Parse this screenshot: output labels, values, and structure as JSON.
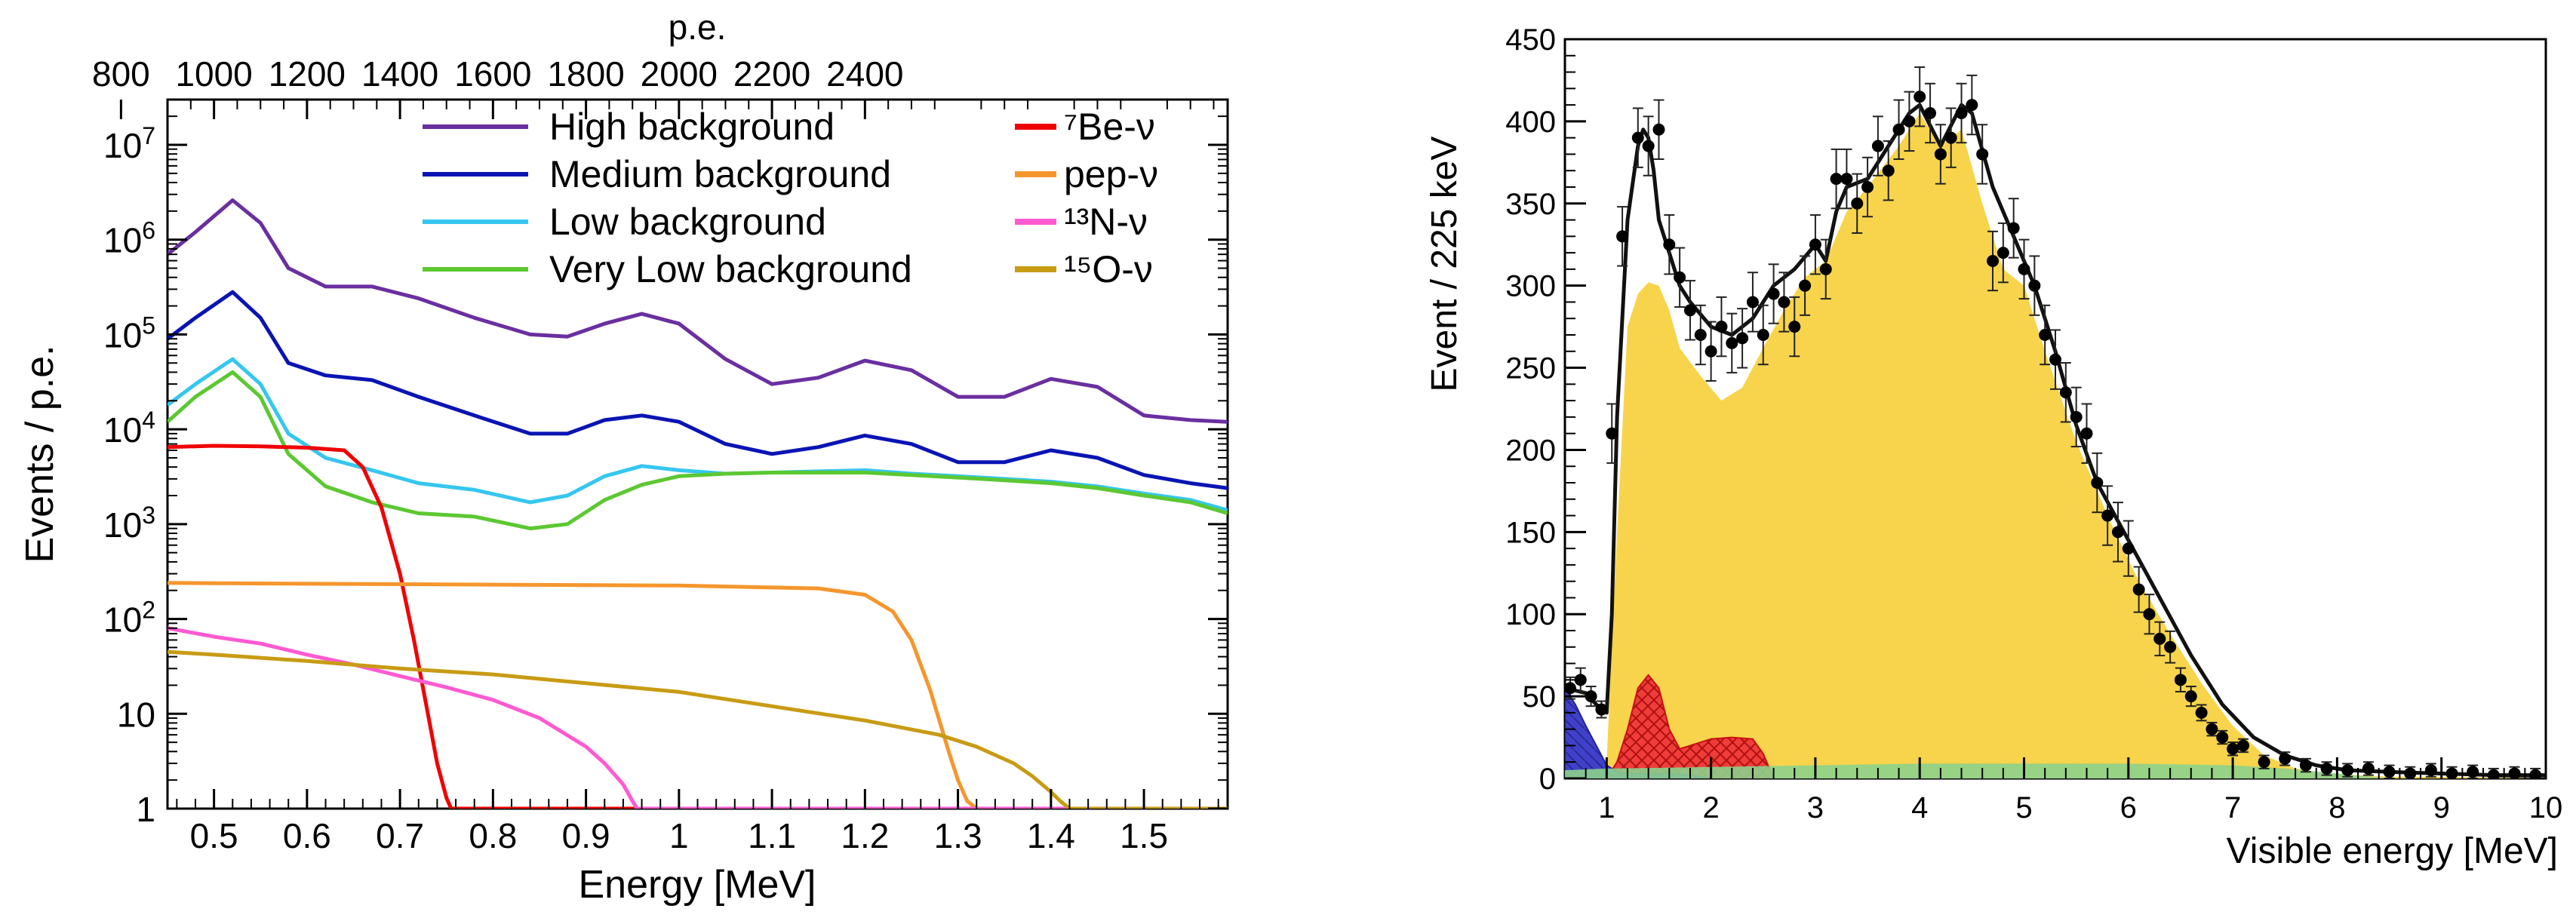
{
  "chart_data": [
    {
      "type": "line",
      "title": "",
      "xlabel": "Energy [MeV]",
      "ylabel": "Events / p.e.",
      "top_axis_label": "p.e.",
      "xlim": [
        0.45,
        1.59
      ],
      "ylim": [
        1,
        30000000
      ],
      "yscale": "log",
      "top_axis_pe_per_mev": 2000,
      "x_ticks": [
        0.5,
        0.6,
        0.7,
        0.8,
        0.9,
        1.0,
        1.1,
        1.2,
        1.3,
        1.4,
        1.5
      ],
      "x_tick_labels": [
        "0.5",
        "0.6",
        "0.7",
        "0.8",
        "0.9",
        "1",
        "1.1",
        "1.2",
        "1.3",
        "1.4",
        "1.5"
      ],
      "top_ticks": [
        800,
        1000,
        1200,
        1400,
        1600,
        1800,
        2000,
        2200,
        2400
      ],
      "top_tick_labels": [
        "800",
        "1000",
        "1200",
        "1400",
        "1600",
        "1800",
        "2000",
        "2200",
        "2400"
      ],
      "y_ticks": [
        {
          "value": 1,
          "base": "1",
          "exp": ""
        },
        {
          "value": 10,
          "base": "10",
          "exp": ""
        },
        {
          "value": 100,
          "base": "10",
          "exp": "2"
        },
        {
          "value": 1000,
          "base": "10",
          "exp": "3"
        },
        {
          "value": 10000,
          "base": "10",
          "exp": "4"
        },
        {
          "value": 100000,
          "base": "10",
          "exp": "5"
        },
        {
          "value": 1000000,
          "base": "10",
          "exp": "6"
        },
        {
          "value": 10000000,
          "base": "10",
          "exp": "7"
        }
      ],
      "series": [
        {
          "name": "High background",
          "color": "#6a2fa0",
          "x": [
            0.45,
            0.48,
            0.52,
            0.55,
            0.58,
            0.62,
            0.67,
            0.72,
            0.78,
            0.84,
            0.88,
            0.92,
            0.96,
            1.0,
            1.05,
            1.1,
            1.15,
            1.2,
            1.25,
            1.3,
            1.35,
            1.4,
            1.45,
            1.5,
            1.55,
            1.59
          ],
          "y": [
            700000,
            1200000,
            2600000,
            1500000,
            500000,
            320000,
            320000,
            240000,
            150000,
            100000,
            95000,
            130000,
            165000,
            130000,
            55000,
            30000,
            35000,
            53000,
            42000,
            22000,
            22000,
            34000,
            28000,
            14000,
            12500,
            12000
          ]
        },
        {
          "name": "Medium background",
          "color": "#0a14b4",
          "x": [
            0.45,
            0.48,
            0.52,
            0.55,
            0.58,
            0.62,
            0.67,
            0.72,
            0.78,
            0.84,
            0.88,
            0.92,
            0.96,
            1.0,
            1.05,
            1.1,
            1.15,
            1.2,
            1.25,
            1.3,
            1.35,
            1.4,
            1.45,
            1.5,
            1.55,
            1.59
          ],
          "y": [
            90000,
            150000,
            280000,
            150000,
            50000,
            37000,
            33000,
            22000,
            14000,
            9000,
            9000,
            12500,
            14000,
            12000,
            7000,
            5500,
            6500,
            8600,
            7000,
            4500,
            4500,
            6000,
            5000,
            3300,
            2700,
            2400
          ]
        },
        {
          "name": "Low background",
          "color": "#36c6f0",
          "x": [
            0.45,
            0.48,
            0.52,
            0.55,
            0.58,
            0.62,
            0.67,
            0.72,
            0.78,
            0.84,
            0.88,
            0.92,
            0.96,
            1.0,
            1.05,
            1.1,
            1.15,
            1.2,
            1.25,
            1.3,
            1.35,
            1.4,
            1.45,
            1.5,
            1.55,
            1.59
          ],
          "y": [
            18000,
            30000,
            55000,
            30000,
            9000,
            5000,
            3700,
            2700,
            2300,
            1700,
            2000,
            3200,
            4100,
            3700,
            3400,
            3500,
            3600,
            3700,
            3400,
            3200,
            3000,
            2800,
            2500,
            2100,
            1800,
            1400
          ]
        },
        {
          "name": "Very Low background",
          "color": "#5cc832",
          "x": [
            0.45,
            0.48,
            0.52,
            0.55,
            0.58,
            0.62,
            0.67,
            0.72,
            0.78,
            0.84,
            0.88,
            0.92,
            0.96,
            1.0,
            1.05,
            1.1,
            1.15,
            1.2,
            1.25,
            1.3,
            1.35,
            1.4,
            1.45,
            1.5,
            1.55,
            1.59
          ],
          "y": [
            12000,
            22000,
            40000,
            22000,
            5500,
            2500,
            1700,
            1300,
            1200,
            900,
            1000,
            1800,
            2600,
            3200,
            3400,
            3500,
            3500,
            3500,
            3300,
            3100,
            2900,
            2700,
            2400,
            2000,
            1700,
            1300
          ]
        },
        {
          "name": "⁷Be-ν",
          "color": "#f00000",
          "x": [
            0.45,
            0.5,
            0.55,
            0.6,
            0.64,
            0.66,
            0.68,
            0.7,
            0.715,
            0.73,
            0.74,
            0.75,
            0.755,
            0.76,
            1.0,
            1.59
          ],
          "y": [
            6500,
            6700,
            6600,
            6400,
            6000,
            4000,
            1500,
            300,
            60,
            10,
            3,
            1.3,
            1,
            1,
            1,
            1
          ]
        },
        {
          "name": "pep-ν",
          "color": "#f5962d",
          "x": [
            0.45,
            0.6,
            0.8,
            1.0,
            1.15,
            1.2,
            1.23,
            1.25,
            1.27,
            1.29,
            1.3,
            1.31,
            1.32,
            1.59
          ],
          "y": [
            240,
            235,
            230,
            225,
            210,
            180,
            120,
            60,
            18,
            4,
            2,
            1.2,
            1,
            1
          ]
        },
        {
          "name": "¹³N-ν",
          "color": "#ff5ad2",
          "x": [
            0.45,
            0.5,
            0.55,
            0.6,
            0.65,
            0.7,
            0.75,
            0.8,
            0.85,
            0.9,
            0.92,
            0.94,
            0.95,
            0.955,
            1.59
          ],
          "y": [
            80,
            65,
            55,
            42,
            33,
            25,
            19,
            14,
            9,
            4.5,
            3,
            1.8,
            1.2,
            1,
            1
          ]
        },
        {
          "name": "¹⁵O-ν",
          "color": "#c89b14",
          "x": [
            0.45,
            0.5,
            0.6,
            0.7,
            0.8,
            0.9,
            1.0,
            1.1,
            1.2,
            1.28,
            1.32,
            1.36,
            1.38,
            1.4,
            1.41,
            1.42,
            1.59
          ],
          "y": [
            45,
            42,
            36,
            30,
            26,
            21,
            17,
            12,
            8.5,
            6,
            4.5,
            3,
            2.2,
            1.5,
            1.2,
            1,
            1
          ]
        }
      ]
    },
    {
      "type": "histogram",
      "title": "",
      "xlabel": "Visible energy [MeV]",
      "ylabel": "Event / 225 keV",
      "xlim": [
        0.6,
        10
      ],
      "ylim": [
        0,
        450
      ],
      "x_ticks": [
        1,
        2,
        3,
        4,
        5,
        6,
        7,
        8,
        9,
        10
      ],
      "x_tick_labels": [
        "1",
        "2",
        "3",
        "4",
        "5",
        "6",
        "7",
        "8",
        "9",
        "10"
      ],
      "y_ticks": [
        0,
        50,
        100,
        150,
        200,
        250,
        300,
        350,
        400,
        450
      ],
      "y_tick_labels": [
        "0",
        "50",
        "100",
        "150",
        "200",
        "250",
        "300",
        "350",
        "400",
        "450"
      ],
      "components": [
        {
          "name": "yellow-stack",
          "color": "#f7d44c",
          "x": [
            0.6,
            0.8,
            1.0,
            1.1,
            1.2,
            1.3,
            1.4,
            1.5,
            1.6,
            1.7,
            1.9,
            2.1,
            2.3,
            2.5,
            2.7,
            2.9,
            3.1,
            3.3,
            3.5,
            3.8,
            4.0,
            4.2,
            4.4,
            4.6,
            4.8,
            5.0,
            5.2,
            5.5,
            5.8,
            6.1,
            6.4,
            6.7,
            7.0,
            7.3,
            7.6,
            7.9,
            8.2,
            8.5,
            9.0,
            10.0
          ],
          "y": [
            0,
            0,
            10,
            150,
            275,
            295,
            302,
            300,
            285,
            262,
            245,
            230,
            238,
            262,
            285,
            305,
            315,
            345,
            360,
            385,
            405,
            385,
            395,
            350,
            310,
            300,
            260,
            205,
            160,
            120,
            88,
            58,
            32,
            14,
            6,
            3,
            2,
            1,
            1,
            0
          ]
        },
        {
          "name": "red-hatched",
          "color": "#e8201e",
          "x": [
            1.0,
            1.1,
            1.2,
            1.3,
            1.4,
            1.5,
            1.6,
            1.7,
            1.8,
            1.9,
            2.0,
            2.2,
            2.4,
            2.5,
            2.6
          ],
          "y": [
            0,
            10,
            30,
            55,
            63,
            55,
            30,
            18,
            20,
            22,
            24,
            25,
            24,
            15,
            0
          ]
        },
        {
          "name": "blue-fill",
          "color": "#3c3cc8",
          "x": [
            0.6,
            0.7,
            0.8,
            0.9,
            1.0,
            1.1,
            1.2,
            1.4,
            1.6,
            1.8,
            2.0
          ],
          "y": [
            55,
            45,
            32,
            20,
            8,
            4,
            3,
            3,
            3,
            2,
            0
          ]
        },
        {
          "name": "green-fill",
          "color": "#8cd28c",
          "x": [
            0.6,
            1.0,
            2.0,
            3.0,
            4.0,
            5.0,
            6.0,
            7.0,
            7.5,
            8.0,
            8.5
          ],
          "y": [
            5,
            6,
            7,
            8,
            9,
            9,
            9,
            8,
            6,
            3,
            0
          ]
        }
      ],
      "fit": {
        "name": "total-fit",
        "color": "#111111",
        "x": [
          0.6,
          0.8,
          0.9,
          1.0,
          1.05,
          1.1,
          1.2,
          1.3,
          1.35,
          1.4,
          1.45,
          1.5,
          1.6,
          1.7,
          1.8,
          2.0,
          2.2,
          2.4,
          2.6,
          2.8,
          3.0,
          3.1,
          3.2,
          3.3,
          3.5,
          3.7,
          3.9,
          4.0,
          4.2,
          4.4,
          4.5,
          4.7,
          4.9,
          5.1,
          5.3,
          5.5,
          5.7,
          6.0,
          6.3,
          6.6,
          6.9,
          7.2,
          7.5,
          7.8,
          8.1,
          8.5,
          9.0,
          9.5,
          10.0
        ],
        "y": [
          55,
          52,
          45,
          40,
          100,
          220,
          340,
          385,
          395,
          390,
          370,
          340,
          320,
          300,
          290,
          275,
          270,
          280,
          300,
          310,
          325,
          315,
          345,
          360,
          365,
          385,
          405,
          410,
          385,
          410,
          405,
          360,
          330,
          300,
          260,
          215,
          180,
          145,
          110,
          75,
          45,
          25,
          14,
          8,
          5,
          4,
          3,
          2,
          2
        ]
      },
      "points": {
        "x": [
          0.65,
          0.75,
          0.85,
          0.95,
          1.05,
          1.15,
          1.3,
          1.4,
          1.5,
          1.6,
          1.7,
          1.8,
          1.9,
          2.0,
          2.1,
          2.2,
          2.3,
          2.4,
          2.5,
          2.6,
          2.7,
          2.8,
          2.9,
          3.0,
          3.1,
          3.2,
          3.3,
          3.4,
          3.5,
          3.6,
          3.7,
          3.8,
          3.9,
          4.0,
          4.1,
          4.2,
          4.3,
          4.4,
          4.5,
          4.6,
          4.7,
          4.8,
          4.9,
          5.0,
          5.1,
          5.2,
          5.3,
          5.4,
          5.5,
          5.6,
          5.7,
          5.8,
          5.9,
          6.0,
          6.1,
          6.2,
          6.3,
          6.4,
          6.5,
          6.6,
          6.7,
          6.8,
          6.9,
          7.0,
          7.1,
          7.3,
          7.5,
          7.7,
          7.9,
          8.1,
          8.3,
          8.5,
          8.7,
          8.9,
          9.1,
          9.3,
          9.5,
          9.7,
          9.9
        ],
        "y": [
          55,
          60,
          50,
          42,
          210,
          330,
          390,
          385,
          395,
          325,
          305,
          285,
          270,
          260,
          275,
          265,
          268,
          290,
          270,
          295,
          290,
          275,
          300,
          325,
          310,
          365,
          365,
          350,
          360,
          385,
          370,
          395,
          400,
          415,
          405,
          380,
          390,
          405,
          410,
          380,
          315,
          320,
          335,
          310,
          300,
          270,
          255,
          235,
          220,
          210,
          180,
          160,
          150,
          140,
          115,
          100,
          85,
          80,
          60,
          50,
          40,
          30,
          25,
          18,
          20,
          10,
          12,
          8,
          6,
          5,
          6,
          4,
          3,
          5,
          3,
          4,
          2,
          3,
          2
        ],
        "err": 18
      }
    }
  ]
}
